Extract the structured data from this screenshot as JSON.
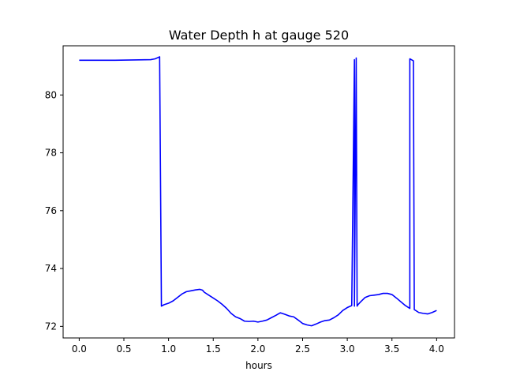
{
  "chart_data": {
    "type": "line",
    "title": "Water Depth h at gauge 520",
    "xlabel": "hours",
    "ylabel": "",
    "xlim": [
      -0.18,
      4.2
    ],
    "ylim": [
      71.6,
      81.7
    ],
    "grid": false,
    "legend": "none",
    "xticks": [
      0.0,
      0.5,
      1.0,
      1.5,
      2.0,
      2.5,
      3.0,
      3.5,
      4.0
    ],
    "xtick_labels": [
      "0.0",
      "0.5",
      "1.0",
      "1.5",
      "2.0",
      "2.5",
      "3.0",
      "3.5",
      "4.0"
    ],
    "yticks": [
      72,
      74,
      76,
      78,
      80
    ],
    "ytick_labels": [
      "72",
      "74",
      "76",
      "78",
      "80"
    ],
    "series": [
      {
        "color": "#0000ff",
        "x": [
          0.0,
          0.2,
          0.4,
          0.6,
          0.8,
          0.85,
          0.9,
          0.92,
          0.95,
          1.0,
          1.05,
          1.1,
          1.15,
          1.2,
          1.25,
          1.3,
          1.35,
          1.38,
          1.4,
          1.45,
          1.5,
          1.55,
          1.6,
          1.65,
          1.7,
          1.75,
          1.8,
          1.85,
          1.9,
          1.95,
          2.0,
          2.05,
          2.1,
          2.15,
          2.2,
          2.25,
          2.3,
          2.35,
          2.4,
          2.45,
          2.5,
          2.55,
          2.6,
          2.65,
          2.7,
          2.75,
          2.8,
          2.85,
          2.9,
          2.95,
          3.0,
          3.05,
          3.08,
          3.08,
          3.1,
          3.11,
          3.11,
          3.12,
          3.15,
          3.2,
          3.25,
          3.3,
          3.35,
          3.4,
          3.45,
          3.5,
          3.55,
          3.6,
          3.65,
          3.7,
          3.7,
          3.74,
          3.75,
          3.8,
          3.85,
          3.9,
          3.95,
          4.0
        ],
        "y": [
          81.2,
          81.2,
          81.2,
          81.21,
          81.22,
          81.25,
          81.32,
          72.7,
          72.75,
          72.8,
          72.88,
          73.0,
          73.12,
          73.2,
          73.23,
          73.26,
          73.28,
          73.25,
          73.18,
          73.08,
          72.98,
          72.88,
          72.76,
          72.62,
          72.45,
          72.33,
          72.27,
          72.18,
          72.17,
          72.18,
          72.15,
          72.18,
          72.22,
          72.3,
          72.38,
          72.47,
          72.42,
          72.36,
          72.33,
          72.22,
          72.1,
          72.05,
          72.02,
          72.08,
          72.15,
          72.2,
          72.22,
          72.3,
          72.4,
          72.55,
          72.65,
          72.72,
          81.22,
          72.7,
          81.28,
          72.7,
          72.7,
          72.75,
          72.85,
          73.0,
          73.06,
          73.08,
          73.1,
          73.14,
          73.14,
          73.1,
          72.98,
          72.85,
          72.72,
          72.62,
          81.25,
          81.18,
          72.58,
          72.48,
          72.45,
          72.43,
          72.48,
          72.55
        ]
      }
    ]
  }
}
